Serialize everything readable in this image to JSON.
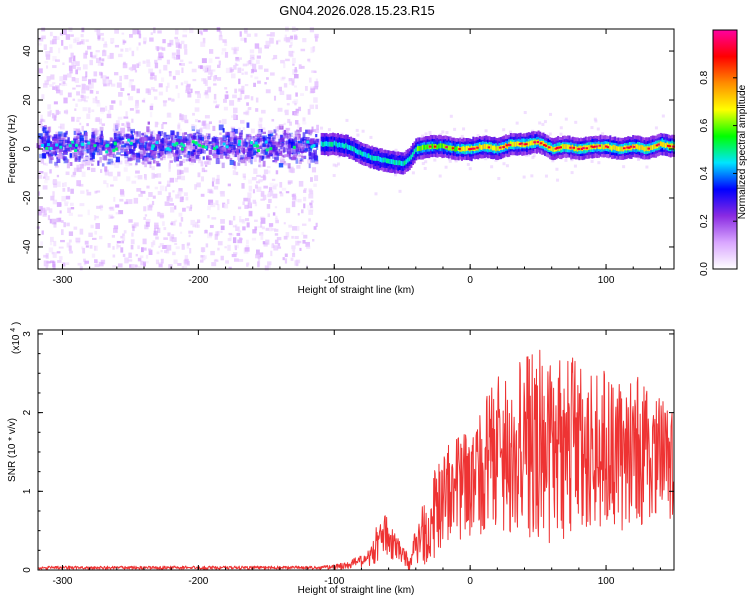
{
  "figure": {
    "title": "GN04.2026.028.15.23.R15"
  },
  "chart_data": [
    {
      "type": "heatmap",
      "title": "GN04.2026.028.15.23.R15",
      "xlabel": "Height of straight line (km)",
      "ylabel": "Frequency (Hz)",
      "xlim": [
        -318,
        150
      ],
      "ylim": [
        -49,
        49
      ],
      "x_ticks": [
        -300,
        -200,
        -100,
        0,
        100
      ],
      "x_tick_labels": [
        "-300",
        "-200",
        "-100",
        "0",
        "100"
      ],
      "y_ticks": [
        -40,
        -20,
        0,
        20,
        40
      ],
      "y_tick_labels": [
        "-40",
        "-20",
        "0",
        "20",
        "40"
      ],
      "ridge": {
        "x": [
          -110,
          -100,
          -90,
          -80,
          -70,
          -60,
          -50,
          -45,
          -40,
          -30,
          -20,
          -10,
          0,
          10,
          20,
          30,
          40,
          50,
          60,
          70,
          80,
          90,
          100,
          110,
          120,
          130,
          140,
          150
        ],
        "y": [
          2,
          2,
          1,
          -2,
          -4,
          -5,
          -6,
          -4,
          0,
          1,
          1,
          0,
          0,
          1,
          0,
          2,
          2,
          3,
          0,
          1,
          0,
          1,
          1,
          0,
          1,
          0,
          2,
          1
        ]
      },
      "noise_region": {
        "x_start": -318,
        "x_end": -112,
        "center_freq": 1,
        "spread_freq": 12
      },
      "colorbar": {
        "label": "Normalized spectral amplitude",
        "range": [
          0,
          1
        ],
        "ticks": [
          0.0,
          0.2,
          0.4,
          0.6,
          0.8
        ],
        "tick_labels": [
          "0.0",
          "0.2",
          "0.4",
          "0.6",
          "0.8"
        ],
        "colors": [
          "#ffffff",
          "#d9a6ff",
          "#8a2be2",
          "#0000ff",
          "#00e5ff",
          "#00ff00",
          "#ffff00",
          "#ff8c00",
          "#ff0000",
          "#ff00a0"
        ]
      },
      "grid": false
    },
    {
      "type": "line",
      "xlabel": "Height of straight line (km)",
      "ylabel": "SNR (10 * v/v)",
      "y_multiplier_label": "(x10",
      "y_multiplier_exponent": "4",
      "y_multiplier_close": ")",
      "xlim": [
        -318,
        150
      ],
      "ylim": [
        0,
        3.05
      ],
      "x_ticks": [
        -300,
        -200,
        -100,
        0,
        100
      ],
      "x_tick_labels": [
        "-300",
        "-200",
        "-100",
        "0",
        "100"
      ],
      "y_ticks": [
        0,
        1,
        2,
        3
      ],
      "y_tick_labels": [
        "0",
        "1",
        "2",
        "3"
      ],
      "series": [
        {
          "color": "#ee3333",
          "envelope": {
            "x": [
              -318,
              -110,
              -90,
              -75,
              -68,
              -62,
              -55,
              -50,
              -45,
              -40,
              -35,
              -30,
              -25,
              -20,
              -10,
              0,
              10,
              20,
              30,
              40,
              50,
              60,
              70,
              80,
              90,
              100,
              110,
              120,
              130,
              140,
              150
            ],
            "mean": [
              0.03,
              0.03,
              0.05,
              0.15,
              0.35,
              0.45,
              0.3,
              0.2,
              0.1,
              0.3,
              0.45,
              0.6,
              0.75,
              0.9,
              1.05,
              1.2,
              1.35,
              1.45,
              1.5,
              1.55,
              1.6,
              1.6,
              1.55,
              1.55,
              1.5,
              1.55,
              1.5,
              1.5,
              1.45,
              1.45,
              1.45
            ],
            "amp": [
              0.02,
              0.02,
              0.05,
              0.1,
              0.25,
              0.25,
              0.2,
              0.1,
              0.1,
              0.25,
              0.4,
              0.5,
              0.6,
              0.6,
              0.7,
              0.8,
              0.9,
              1.0,
              1.1,
              1.2,
              1.2,
              1.3,
              1.2,
              1.1,
              1.0,
              1.0,
              1.0,
              1.0,
              0.9,
              0.8,
              0.8
            ]
          }
        }
      ],
      "grid": false
    }
  ]
}
